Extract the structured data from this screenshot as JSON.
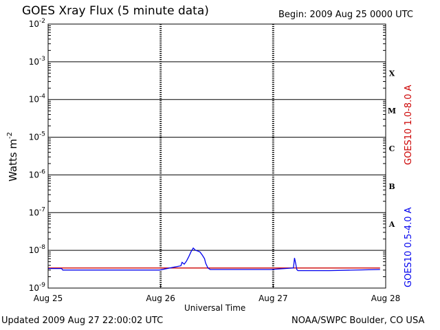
{
  "header": {
    "title": "GOES Xray Flux (5 minute data)",
    "begin": "Begin:  2009 Aug 25 0000 UTC"
  },
  "footer": {
    "updated": "Updated 2009 Aug 27 22:00:02 UTC",
    "credit": "NOAA/SWPC Boulder, CO USA"
  },
  "colors": {
    "long_channel": "#cc0000",
    "short_channel": "#0000ee",
    "axes": "#000000"
  },
  "chart_data": {
    "type": "line",
    "title": "GOES Xray Flux (5 minute data)",
    "xlabel": "Universal Time",
    "ylabel": "Watts m-2",
    "yscale": "log",
    "ylim": [
      1e-09,
      0.01
    ],
    "xlim": [
      0,
      3
    ],
    "x_ticks": [
      {
        "value": 0,
        "label": "Aug 25"
      },
      {
        "value": 1,
        "label": "Aug 26"
      },
      {
        "value": 2,
        "label": "Aug 27"
      },
      {
        "value": 3,
        "label": "Aug 28"
      }
    ],
    "y_ticks": [
      {
        "value": 1e-09,
        "base": "10",
        "exp": "-9"
      },
      {
        "value": 1e-08,
        "base": "10",
        "exp": "-8"
      },
      {
        "value": 1e-07,
        "base": "10",
        "exp": "-7"
      },
      {
        "value": 1e-06,
        "base": "10",
        "exp": "-6"
      },
      {
        "value": 1e-05,
        "base": "10",
        "exp": "-5"
      },
      {
        "value": 0.0001,
        "base": "10",
        "exp": "-4"
      },
      {
        "value": 0.001,
        "base": "10",
        "exp": "-3"
      },
      {
        "value": 0.01,
        "base": "10",
        "exp": "-2"
      }
    ],
    "flare_classes": [
      {
        "label": "X",
        "value": 0.0005
      },
      {
        "label": "M",
        "value": 5e-05
      },
      {
        "label": "C",
        "value": 5e-06
      },
      {
        "label": "B",
        "value": 5e-07
      },
      {
        "label": "A",
        "value": 5e-08
      }
    ],
    "grid": true,
    "series": [
      {
        "name": "GOES10 1.0-8.0 A",
        "color": "#cc0000",
        "points": [
          [
            0.0,
            3.4e-09
          ],
          [
            0.99,
            3.4e-09
          ],
          [
            1.15,
            3.4e-09
          ],
          [
            1.98,
            3.4e-09
          ],
          [
            2.18,
            3.4e-09
          ],
          [
            2.95,
            3.4e-09
          ]
        ]
      },
      {
        "name": "GOES10 0.5-4.0 A",
        "color": "#0000ee",
        "points": [
          [
            0.0,
            3.3e-09
          ],
          [
            0.12,
            3.3e-09
          ],
          [
            0.13,
            3e-09
          ],
          [
            0.99,
            3e-09
          ],
          [
            1.18,
            3.9e-09
          ],
          [
            1.19,
            4.8e-09
          ],
          [
            1.21,
            4.3e-09
          ],
          [
            1.23,
            5.2e-09
          ],
          [
            1.25,
            6.8e-09
          ],
          [
            1.27,
            9.2e-09
          ],
          [
            1.29,
            1.15e-08
          ],
          [
            1.31,
            1e-08
          ],
          [
            1.33,
            9.6e-09
          ],
          [
            1.35,
            9e-09
          ],
          [
            1.37,
            7.5e-09
          ],
          [
            1.39,
            6e-09
          ],
          [
            1.4,
            4.6e-09
          ],
          [
            1.42,
            3.4e-09
          ],
          [
            1.44,
            3.1e-09
          ],
          [
            1.98,
            3.1e-09
          ],
          [
            2.18,
            3.4e-09
          ],
          [
            2.19,
            6.3e-09
          ],
          [
            2.2,
            4.5e-09
          ],
          [
            2.21,
            3.1e-09
          ],
          [
            2.22,
            2.9e-09
          ],
          [
            2.5,
            2.9e-09
          ],
          [
            2.95,
            3.1e-09
          ]
        ]
      }
    ]
  }
}
